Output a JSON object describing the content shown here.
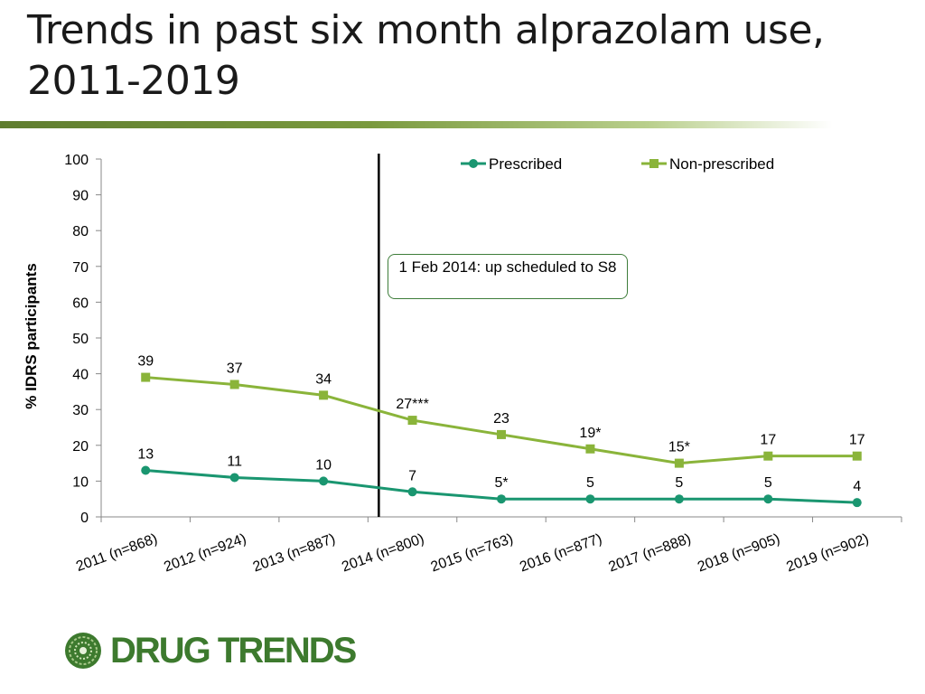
{
  "slide": {
    "title": "Trends in past six month alprazolam use, 2011-2019",
    "logo_text": "DRUG TRENDS"
  },
  "annotation": {
    "text": "1 Feb 2014: up scheduled to S8",
    "marker_after_category": "2013 (n=887)"
  },
  "colors": {
    "prescribed": "#1a9670",
    "non_prescribed": "#8ab43a",
    "title_rule": "#6b8e35",
    "annotation_border": "#3e7d3a",
    "logo": "#3d7a2e"
  },
  "chart_data": {
    "type": "line",
    "title": "",
    "xlabel": "",
    "ylabel": "% IDRS participants",
    "ylim": [
      0,
      100
    ],
    "yticks": [
      0,
      10,
      20,
      30,
      40,
      50,
      60,
      70,
      80,
      90,
      100
    ],
    "legend_position": "top-right",
    "categories": [
      "2011 (n=868)",
      "2012 (n=924)",
      "2013 (n=887)",
      "2014 (n=800)",
      "2015 (n=763)",
      "2016 (n=877)",
      "2017 (n=888)",
      "2018 (n=905)",
      "2019 (n=902)"
    ],
    "series": [
      {
        "name": "Prescribed",
        "marker": "circle",
        "values": [
          13,
          11,
          10,
          7,
          5,
          5,
          5,
          5,
          4
        ],
        "labels": [
          "13",
          "11",
          "10",
          "7",
          "5*",
          "5",
          "5",
          "5",
          "4"
        ]
      },
      {
        "name": "Non-prescribed",
        "marker": "square",
        "values": [
          39,
          37,
          34,
          27,
          23,
          19,
          15,
          17,
          17
        ],
        "labels": [
          "39",
          "37",
          "34",
          "27***",
          "23",
          "19*",
          "15*",
          "17",
          "17"
        ]
      }
    ]
  }
}
